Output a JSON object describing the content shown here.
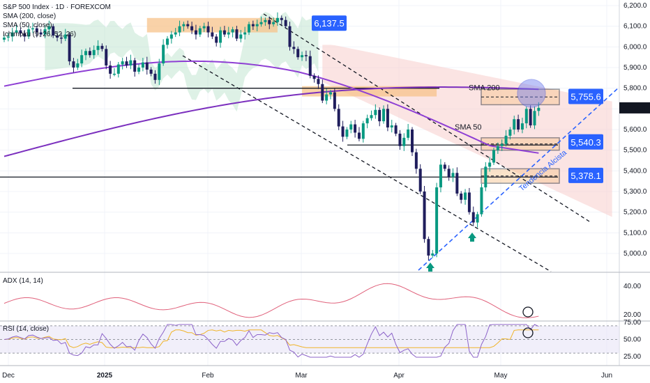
{
  "header": {
    "title": "S&P 500 Index · 1D · FOREXCOM",
    "legend": [
      "SMA (200, close)",
      "SMA (50, close)",
      "Ichimoku (9, 26, 52, 26)"
    ],
    "adx_label": "ADX (14, 14)",
    "rsi_label": "RSI (14, close)"
  },
  "chart_data": [
    {
      "type": "candlestick",
      "title": "S&P 500 Index · 1D · FOREXCOM",
      "x_ticks": [
        "Dec",
        "2025",
        "Feb",
        "Mar",
        "Apr",
        "May",
        "Jun"
      ],
      "y_ticks": [
        "6,200.0",
        "6,100.0",
        "6,000.0",
        "5,900.0",
        "5,800.0",
        "5,700.0",
        "5,600.0",
        "5,500.0",
        "5,400.0",
        "5,300.0",
        "5,200.0",
        "5,100.0",
        "5,000.0"
      ],
      "ylim": [
        4920,
        6215
      ],
      "last_price": "5,704.8",
      "price_badges": [
        "6,137.5",
        "5,755.6",
        "5,540.3",
        "5,378.1"
      ],
      "annotations": [
        "SMA 200",
        "SMA 50",
        "Tendencia Alcista"
      ],
      "horizontal_levels": [
        5800,
        5525,
        5370
      ],
      "closes": [
        6045,
        6050,
        6070,
        6080,
        6065,
        6050,
        6085,
        6090,
        6070,
        6060,
        6085,
        6100,
        6055,
        6045,
        6040,
        6060,
        5930,
        5900,
        5920,
        5960,
        5980,
        5960,
        5985,
        6005,
        5990,
        5910,
        5870,
        5870,
        5915,
        5930,
        5910,
        5935,
        5880,
        5900,
        5925,
        5890,
        5870,
        5840,
        5920,
        6010,
        6040,
        6060,
        6070,
        6100,
        6110,
        6100,
        6080,
        6060,
        6090,
        6100,
        6070,
        6050,
        6020,
        6080,
        6060,
        6070,
        6085,
        6040,
        6060,
        6070,
        6110,
        6100,
        6110,
        6120,
        6130,
        6110,
        6120,
        6140,
        6130,
        6100,
        6000,
        5990,
        5950,
        5960,
        5955,
        5860,
        5845,
        5820,
        5740,
        5770,
        5780,
        5700,
        5615,
        5565,
        5600,
        5625,
        5585,
        5555,
        5630,
        5655,
        5670,
        5695,
        5640,
        5700,
        5610,
        5620,
        5580,
        5520,
        5560,
        5600,
        5490,
        5410,
        5300,
        5070,
        4990,
        5000,
        5320,
        5430,
        5410,
        5370,
        5390,
        5290,
        5260,
        5295,
        5200,
        5150,
        5190,
        5320,
        5420,
        5440,
        5500,
        5520,
        5530,
        5570,
        5600,
        5650,
        5600,
        5630,
        5700,
        5620,
        5690,
        5705
      ],
      "sma200": {
        "start": 5470,
        "end": 5760
      },
      "sma50": {
        "start": 5810,
        "end": 5540
      }
    },
    {
      "type": "line",
      "title": "ADX (14, 14)",
      "y_ticks": [
        "40.00",
        "20.00"
      ],
      "ylim": [
        15,
        52
      ]
    },
    {
      "type": "line",
      "title": "RSI (14, close)",
      "y_ticks": [
        "75.00",
        "50.00",
        "25.00"
      ],
      "ylim": [
        18,
        82
      ],
      "bands": [
        70,
        30
      ]
    }
  ],
  "colors": {
    "up": "#089981",
    "down": "#1f1d5c",
    "sma200": "#7b2fbe",
    "sma50": "#8e3fd4",
    "adx": "#e0607a",
    "rsi": "#8c63c9",
    "rsi_ma": "#f0b429",
    "badge": "#2962ff",
    "zone": "#f7c38b",
    "cloud_green": "#b5e0c8",
    "cloud_red": "#f7c9c7"
  }
}
